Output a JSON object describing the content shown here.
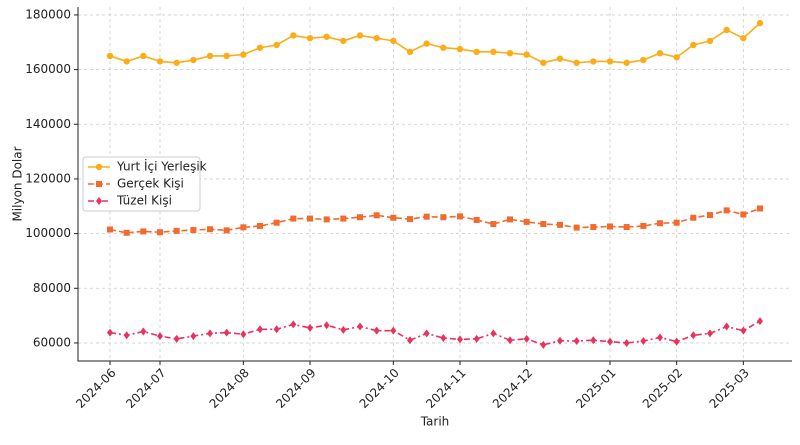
{
  "chart_data": {
    "type": "line",
    "xlabel": "Tarih",
    "ylabel": "Milyon Dolar",
    "categories": [
      "2024-06",
      null,
      null,
      "2024-07",
      null,
      null,
      null,
      null,
      "2024-08",
      null,
      null,
      null,
      "2024-09",
      null,
      null,
      null,
      null,
      "2024-10",
      null,
      null,
      null,
      "2024-11",
      null,
      null,
      null,
      "2024-12",
      null,
      null,
      null,
      null,
      "2025-01",
      null,
      null,
      null,
      "2025-02",
      null,
      null,
      null,
      "2025-03",
      null
    ],
    "series": [
      {
        "name": "Yurt İçi Yerleşik",
        "color": "#fbad18",
        "marker": "circle",
        "dash": "none",
        "values": [
          165000,
          163000,
          165000,
          163000,
          162500,
          163500,
          165000,
          165000,
          165500,
          168000,
          169000,
          172500,
          171500,
          172000,
          170500,
          172500,
          171500,
          170500,
          166500,
          169500,
          168000,
          167500,
          166500,
          166500,
          166000,
          165500,
          162500,
          164000,
          162500,
          163000,
          163000,
          162500,
          163500,
          166000,
          164500,
          169000,
          170500,
          174500,
          171500,
          177000
        ]
      },
      {
        "name": "Gerçek Kişi",
        "color": "#f26a2e",
        "marker": "square",
        "dash": "6 3",
        "values": [
          101500,
          100300,
          100800,
          100500,
          101000,
          101300,
          101600,
          101200,
          102300,
          102800,
          104000,
          105500,
          105500,
          105200,
          105500,
          106000,
          106700,
          105800,
          105300,
          106200,
          106000,
          106300,
          105000,
          103500,
          105200,
          104300,
          103500,
          103200,
          102200,
          102400,
          102600,
          102400,
          102800,
          103800,
          104000,
          105800,
          106800,
          108500,
          107000,
          109200
        ]
      },
      {
        "name": "Tüzel Kişi",
        "color": "#e8335e",
        "marker": "diamond",
        "dash": "6 3 2 3",
        "values": [
          63800,
          62800,
          64200,
          62500,
          61500,
          62500,
          63500,
          63800,
          63200,
          65000,
          65000,
          66800,
          65500,
          66500,
          64800,
          66000,
          64500,
          64500,
          61000,
          63500,
          61800,
          61300,
          61500,
          63500,
          61000,
          61500,
          59300,
          60800,
          60700,
          61000,
          60500,
          60000,
          60700,
          62000,
          60500,
          62800,
          63500,
          66000,
          64500,
          68000
        ]
      }
    ],
    "ylim": [
      53400,
      182900
    ],
    "yticks": [
      60000,
      80000,
      100000,
      120000,
      140000,
      160000,
      180000
    ],
    "grid": true,
    "legend": "center-left"
  }
}
